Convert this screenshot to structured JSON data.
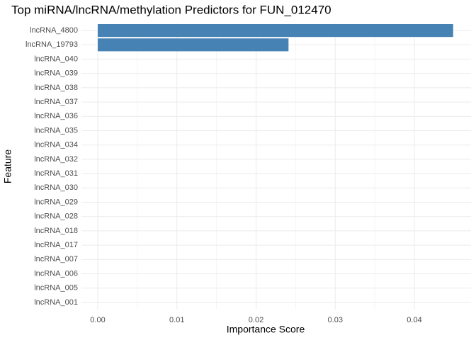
{
  "chart_data": {
    "type": "hbar",
    "title": "Top miRNA/lncRNA/methylation Predictors for FUN_012470",
    "x_label": "Importance Score",
    "y_label": "Feature",
    "categories": [
      "lncRNA_4800",
      "lncRNA_19793",
      "lncRNA_040",
      "lncRNA_039",
      "lncRNA_038",
      "lncRNA_037",
      "lncRNA_036",
      "lncRNA_035",
      "lncRNA_034",
      "lncRNA_032",
      "lncRNA_031",
      "lncRNA_030",
      "lncRNA_029",
      "lncRNA_028",
      "lncRNA_018",
      "lncRNA_017",
      "lncRNA_007",
      "lncRNA_006",
      "lncRNA_005",
      "lncRNA_001"
    ],
    "values": [
      0.0449,
      0.0241,
      0,
      0,
      0,
      0,
      0,
      0,
      0,
      0,
      0,
      0,
      0,
      0,
      0,
      0,
      0,
      0,
      0,
      0
    ],
    "color": "#4682b4",
    "xlim": [
      -0.00206,
      0.04716
    ],
    "xticks": [
      {
        "value": 0,
        "label": "0.00"
      },
      {
        "value": 0.01,
        "label": "0.01"
      },
      {
        "value": 0.02,
        "label": "0.02"
      },
      {
        "value": 0.03,
        "label": "0.03"
      },
      {
        "value": 0.04,
        "label": "0.04"
      }
    ],
    "grid": true
  }
}
